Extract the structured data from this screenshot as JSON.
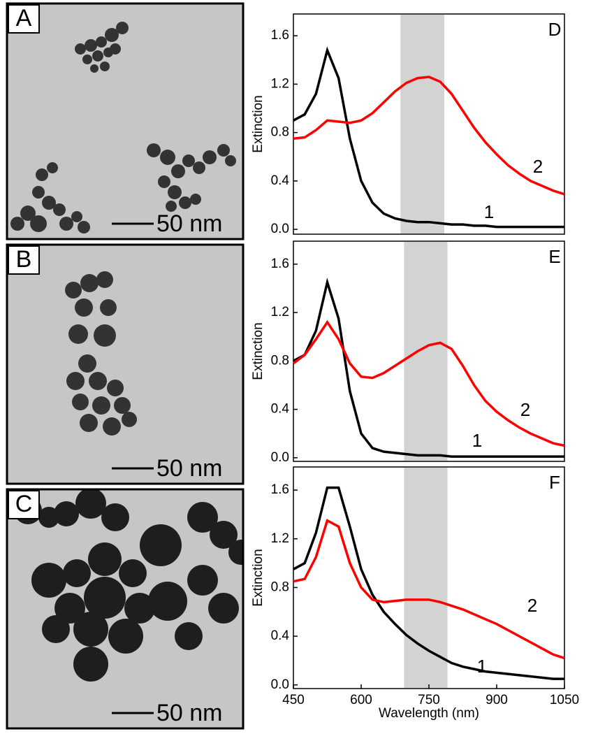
{
  "panels": [
    {
      "label": "A",
      "scale_bar": "50 nm"
    },
    {
      "label": "B",
      "scale_bar": "50 nm"
    },
    {
      "label": "C",
      "scale_bar": "50 nm"
    }
  ],
  "chart_data": [
    {
      "type": "line",
      "panel": "D",
      "ylabel": "Extinction",
      "xlim": [
        450,
        1050
      ],
      "ylim": [
        -0.04,
        1.78
      ],
      "yticks": [
        {
          "value": 0,
          "label": "0.0"
        },
        0.4,
        0.8,
        1.2,
        1.6
      ],
      "shaded_range": [
        687,
        784
      ],
      "x": [
        450,
        475,
        500,
        525,
        550,
        575,
        600,
        625,
        650,
        675,
        700,
        725,
        750,
        775,
        800,
        825,
        850,
        875,
        900,
        925,
        950,
        975,
        1000,
        1025,
        1050
      ],
      "series": [
        {
          "name": "1",
          "color": "#000000",
          "values": [
            0.9,
            0.95,
            1.12,
            1.48,
            1.25,
            0.75,
            0.4,
            0.22,
            0.13,
            0.09,
            0.07,
            0.06,
            0.06,
            0.05,
            0.04,
            0.04,
            0.03,
            0.03,
            0.02,
            0.02,
            0.02,
            0.02,
            0.02,
            0.02,
            0.02
          ]
        },
        {
          "name": "2",
          "color": "#ff0000",
          "values": [
            0.75,
            0.76,
            0.82,
            0.9,
            0.89,
            0.88,
            0.9,
            0.96,
            1.05,
            1.14,
            1.21,
            1.25,
            1.26,
            1.22,
            1.12,
            0.98,
            0.84,
            0.72,
            0.62,
            0.53,
            0.46,
            0.4,
            0.36,
            0.32,
            0.29
          ]
        }
      ]
    },
    {
      "type": "line",
      "panel": "E",
      "ylabel": "Extinction",
      "xlim": [
        450,
        1050
      ],
      "ylim": [
        -0.03,
        1.79
      ],
      "yticks": [
        {
          "value": 0,
          "label": "0.0"
        },
        0.4,
        0.8,
        1.2,
        1.6
      ],
      "shaded_range": [
        695,
        791
      ],
      "x": [
        450,
        475,
        500,
        525,
        550,
        575,
        600,
        625,
        650,
        675,
        700,
        725,
        750,
        775,
        800,
        825,
        850,
        875,
        900,
        925,
        950,
        975,
        1000,
        1025,
        1050
      ],
      "series": [
        {
          "name": "1",
          "color": "#000000",
          "values": [
            0.8,
            0.85,
            1.05,
            1.45,
            1.15,
            0.55,
            0.2,
            0.08,
            0.05,
            0.04,
            0.03,
            0.02,
            0.02,
            0.02,
            0.01,
            0.01,
            0.01,
            0.01,
            0.01,
            0.01,
            0.01,
            0.01,
            0.01,
            0.01,
            0.01
          ]
        },
        {
          "name": "2",
          "color": "#ff0000",
          "values": [
            0.78,
            0.85,
            0.98,
            1.12,
            0.98,
            0.78,
            0.67,
            0.66,
            0.7,
            0.76,
            0.82,
            0.88,
            0.93,
            0.95,
            0.9,
            0.76,
            0.6,
            0.47,
            0.38,
            0.31,
            0.25,
            0.2,
            0.16,
            0.12,
            0.1
          ]
        }
      ]
    },
    {
      "type": "line",
      "panel": "F",
      "ylabel": "Extinction",
      "xlabel": "Wavelength (nm)",
      "xlim": [
        450,
        1050
      ],
      "ylim": [
        -0.03,
        1.79
      ],
      "xticks": [
        450,
        600,
        750,
        900,
        1050
      ],
      "yticks": [
        {
          "value": 0,
          "label": "0.0"
        },
        0.4,
        0.8,
        1.2,
        1.6
      ],
      "shaded_range": [
        695,
        791
      ],
      "x": [
        450,
        475,
        500,
        525,
        550,
        575,
        600,
        625,
        650,
        675,
        700,
        725,
        750,
        775,
        800,
        825,
        850,
        875,
        900,
        925,
        950,
        975,
        1000,
        1025,
        1050
      ],
      "series": [
        {
          "name": "1",
          "color": "#000000",
          "values": [
            0.95,
            1.0,
            1.25,
            1.62,
            1.62,
            1.3,
            0.95,
            0.74,
            0.6,
            0.5,
            0.41,
            0.34,
            0.28,
            0.23,
            0.18,
            0.15,
            0.13,
            0.11,
            0.1,
            0.09,
            0.08,
            0.07,
            0.06,
            0.05,
            0.05
          ]
        },
        {
          "name": "2",
          "color": "#ff0000",
          "values": [
            0.85,
            0.87,
            1.05,
            1.35,
            1.3,
            1.0,
            0.8,
            0.7,
            0.68,
            0.69,
            0.7,
            0.7,
            0.7,
            0.68,
            0.65,
            0.62,
            0.58,
            0.54,
            0.5,
            0.45,
            0.4,
            0.35,
            0.3,
            0.25,
            0.22
          ]
        }
      ]
    }
  ]
}
